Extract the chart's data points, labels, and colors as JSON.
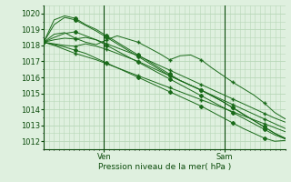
{
  "xlabel": "Pression niveau de la mer( hPa )",
  "bg_color": "#dff0df",
  "grid_color": "#b8d8b8",
  "line_color": "#1a6a1a",
  "dark_green": "#0a4a0a",
  "ylim": [
    1011.5,
    1020.5
  ],
  "xlim": [
    0,
    48
  ],
  "yticks": [
    1012,
    1013,
    1014,
    1015,
    1016,
    1017,
    1018,
    1019,
    1020
  ],
  "xtick_positions": [
    12,
    36
  ],
  "xtick_labels": [
    "Ven",
    "Sam"
  ],
  "vlines": [
    12,
    36
  ],
  "series": [
    [
      1018.2,
      1018.05,
      1017.9,
      1017.7,
      1017.5,
      1017.2,
      1016.9,
      1016.6,
      1016.3,
      1016.0,
      1015.7,
      1015.4,
      1015.1,
      1014.8,
      1014.5,
      1014.2,
      1013.85,
      1013.5,
      1013.15,
      1012.8,
      1012.5,
      1012.2,
      1012.0,
      1012.05
    ],
    [
      1018.2,
      1019.6,
      1019.85,
      1019.7,
      1019.3,
      1019.0,
      1018.6,
      1018.2,
      1017.8,
      1017.4,
      1017.0,
      1016.6,
      1016.2,
      1015.8,
      1015.5,
      1015.2,
      1014.85,
      1014.5,
      1014.1,
      1013.7,
      1013.3,
      1012.9,
      1012.5,
      1012.2
    ],
    [
      1018.2,
      1019.3,
      1019.75,
      1019.6,
      1019.25,
      1018.9,
      1018.5,
      1018.1,
      1017.7,
      1017.3,
      1016.9,
      1016.5,
      1016.1,
      1015.8,
      1015.5,
      1015.2,
      1014.85,
      1014.5,
      1014.1,
      1013.7,
      1013.3,
      1012.9,
      1012.5,
      1012.15
    ],
    [
      1018.2,
      1018.5,
      1018.75,
      1018.85,
      1018.6,
      1018.35,
      1018.0,
      1017.65,
      1017.3,
      1016.95,
      1016.6,
      1016.25,
      1015.9,
      1015.55,
      1015.2,
      1014.85,
      1014.5,
      1014.15,
      1013.8,
      1013.45,
      1013.1,
      1012.75,
      1012.4,
      1012.15
    ],
    [
      1018.2,
      1018.0,
      1017.75,
      1017.5,
      1017.3,
      1017.1,
      1016.85,
      1016.6,
      1016.35,
      1016.1,
      1015.85,
      1015.6,
      1015.35,
      1015.1,
      1014.85,
      1014.6,
      1014.35,
      1014.1,
      1013.85,
      1013.6,
      1013.35,
      1013.1,
      1012.85,
      1012.6
    ],
    [
      1018.2,
      1018.35,
      1018.45,
      1018.4,
      1018.5,
      1018.35,
      1018.1,
      1017.85,
      1017.6,
      1017.35,
      1017.05,
      1016.75,
      1016.45,
      1016.15,
      1015.85,
      1015.55,
      1015.25,
      1014.95,
      1014.65,
      1014.35,
      1014.05,
      1013.75,
      1013.45,
      1013.2
    ],
    [
      1018.2,
      1018.1,
      1018.0,
      1017.95,
      1018.1,
      1017.95,
      1017.75,
      1017.5,
      1017.25,
      1017.0,
      1016.7,
      1016.4,
      1016.1,
      1015.8,
      1015.5,
      1015.2,
      1014.9,
      1014.6,
      1014.3,
      1014.0,
      1013.7,
      1013.4,
      1013.1,
      1012.8
    ],
    [
      1018.2,
      1018.7,
      1018.8,
      1018.45,
      1018.2,
      1018.05,
      1018.35,
      1018.6,
      1018.4,
      1018.2,
      1017.85,
      1017.5,
      1017.1,
      1017.35,
      1017.4,
      1017.1,
      1016.6,
      1016.15,
      1015.7,
      1015.3,
      1014.9,
      1014.4,
      1013.8,
      1013.4
    ]
  ]
}
